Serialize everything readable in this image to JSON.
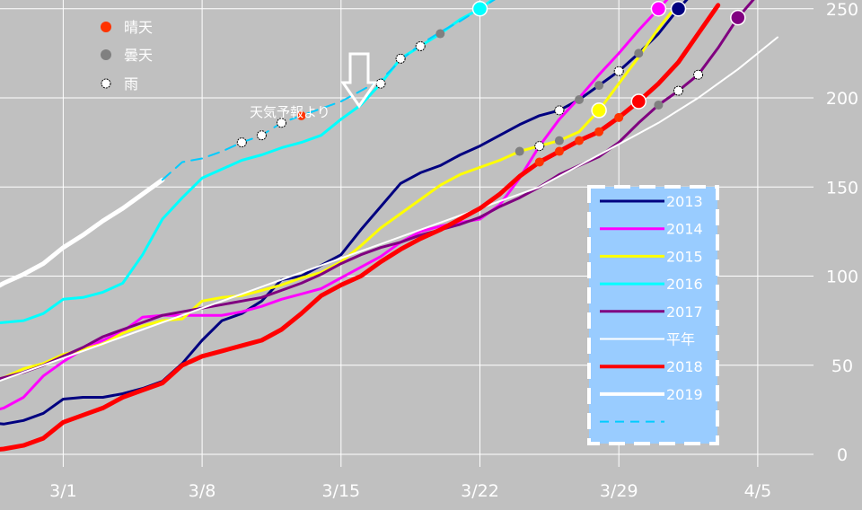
{
  "chart_data": {
    "type": "line",
    "xlabel": "",
    "ylabel": "",
    "x_tick_labels": [
      "3/1",
      "3/8",
      "3/15",
      "3/22",
      "3/29",
      "4/5"
    ],
    "y_tick_labels": [
      "0",
      "50",
      "100",
      "150",
      "200",
      "250"
    ],
    "ylim": [
      0,
      255
    ],
    "grid": true,
    "legend_position": "lower-right",
    "x_dates": [
      "2/25",
      "2/26",
      "2/27",
      "2/28",
      "3/1",
      "3/2",
      "3/3",
      "3/4",
      "3/5",
      "3/6",
      "3/7",
      "3/8",
      "3/9",
      "3/10",
      "3/11",
      "3/12",
      "3/13",
      "3/14",
      "3/15",
      "3/16",
      "3/17",
      "3/18",
      "3/19",
      "3/20",
      "3/21",
      "3/22",
      "3/23",
      "3/24",
      "3/25",
      "3/26",
      "3/27",
      "3/28",
      "3/29",
      "3/30",
      "3/31",
      "4/1",
      "4/2",
      "4/3",
      "4/4",
      "4/5",
      "4/6"
    ],
    "series": [
      {
        "name": "2013",
        "color": "#000080",
        "width": 3,
        "values": [
          18,
          17,
          19,
          23,
          31,
          32,
          32,
          34,
          37,
          41,
          51,
          64,
          75,
          79,
          86,
          98,
          100,
          106,
          112,
          126,
          139,
          152,
          158,
          162,
          168,
          173,
          179,
          185,
          190,
          193,
          199,
          207,
          215,
          225,
          236,
          250,
          262,
          null,
          null,
          null,
          null
        ]
      },
      {
        "name": "2014",
        "color": "#ff00ff",
        "width": 3,
        "values": [
          23,
          26,
          32,
          44,
          52,
          59,
          64,
          69,
          77,
          78,
          78,
          78,
          78,
          80,
          83,
          87,
          90,
          93,
          99,
          105,
          111,
          119,
          125,
          128,
          130,
          132,
          140,
          155,
          173,
          188,
          200,
          213,
          225,
          238,
          250,
          262,
          null,
          null,
          null,
          null,
          null
        ]
      },
      {
        "name": "2015",
        "color": "#ffff00",
        "width": 3,
        "values": [
          40,
          43,
          48,
          51,
          56,
          59,
          62,
          68,
          72,
          75,
          76,
          86,
          88,
          89,
          92,
          95,
          99,
          102,
          108,
          117,
          127,
          135,
          143,
          151,
          157,
          161,
          165,
          170,
          173,
          176,
          181,
          193,
          208,
          223,
          239,
          253,
          null,
          null,
          null,
          null,
          null
        ]
      },
      {
        "name": "2016",
        "color": "#00ffff",
        "width": 3,
        "values": [
          73,
          74,
          75,
          79,
          87,
          88,
          91,
          96,
          112,
          132,
          144,
          155,
          160,
          165,
          168,
          172,
          175,
          179,
          188,
          196,
          208,
          222,
          229,
          236,
          244,
          250,
          258,
          null,
          null,
          null,
          null,
          null,
          null,
          null,
          null,
          null,
          null,
          null,
          null,
          null,
          null
        ]
      },
      {
        "name": "2017",
        "color": "#800080",
        "width": 3,
        "values": [
          40,
          43,
          46,
          50,
          55,
          60,
          66,
          70,
          74,
          78,
          80,
          82,
          84,
          86,
          88,
          92,
          96,
          101,
          107,
          112,
          116,
          119,
          123,
          126,
          129,
          133,
          139,
          144,
          150,
          157,
          162,
          167,
          175,
          186,
          196,
          204,
          213,
          228,
          245,
          258,
          null
        ]
      },
      {
        "name": "平年",
        "color": "#ffffff",
        "width": 2,
        "values": [
          38,
          42,
          46,
          50,
          54,
          58,
          62,
          66,
          70,
          74,
          78,
          82,
          86,
          90,
          94,
          98,
          102,
          106,
          110,
          114,
          118,
          122,
          126,
          130,
          134,
          138,
          142,
          146,
          150,
          156,
          162,
          168,
          174,
          180,
          186,
          193,
          200,
          208,
          216,
          225,
          234
        ]
      },
      {
        "name": "2018",
        "color": "#ff0000",
        "width": 5,
        "values": [
          2,
          3,
          5,
          9,
          18,
          22,
          26,
          32,
          36,
          40,
          50,
          55,
          58,
          61,
          64,
          70,
          79,
          89,
          95,
          100,
          108,
          115,
          121,
          126,
          132,
          138,
          146,
          156,
          164,
          170,
          176,
          181,
          189,
          198,
          208,
          220,
          236,
          252,
          null,
          null,
          null
        ]
      },
      {
        "name": "2019",
        "color": "#ffffff",
        "width": 5,
        "values": [
          90,
          96,
          101,
          107,
          116,
          123,
          131,
          138,
          146,
          154,
          null,
          null,
          null,
          null,
          null,
          null,
          null,
          null,
          null,
          null,
          null,
          null,
          null,
          null,
          null,
          null,
          null,
          null,
          null,
          null,
          null,
          null,
          null,
          null,
          null,
          null,
          null,
          null,
          null,
          null,
          null
        ]
      },
      {
        "name": "",
        "color": "#00ccff",
        "width": 2,
        "dashed": true,
        "values": [
          null,
          null,
          null,
          null,
          null,
          null,
          null,
          null,
          null,
          154,
          164,
          166,
          170,
          175,
          179,
          186,
          190,
          194,
          198,
          204,
          210,
          221,
          230,
          237,
          243,
          250,
          257,
          null,
          null,
          null,
          null,
          null,
          null,
          null,
          null,
          null,
          null,
          null,
          null,
          null,
          null
        ]
      }
    ],
    "legend": {
      "weather_items": [
        "晴天",
        "曇天",
        "雨"
      ],
      "weather_colors": [
        "#ff3300",
        "#808080",
        "#ffffff"
      ]
    },
    "annotation": "天気予報より"
  }
}
